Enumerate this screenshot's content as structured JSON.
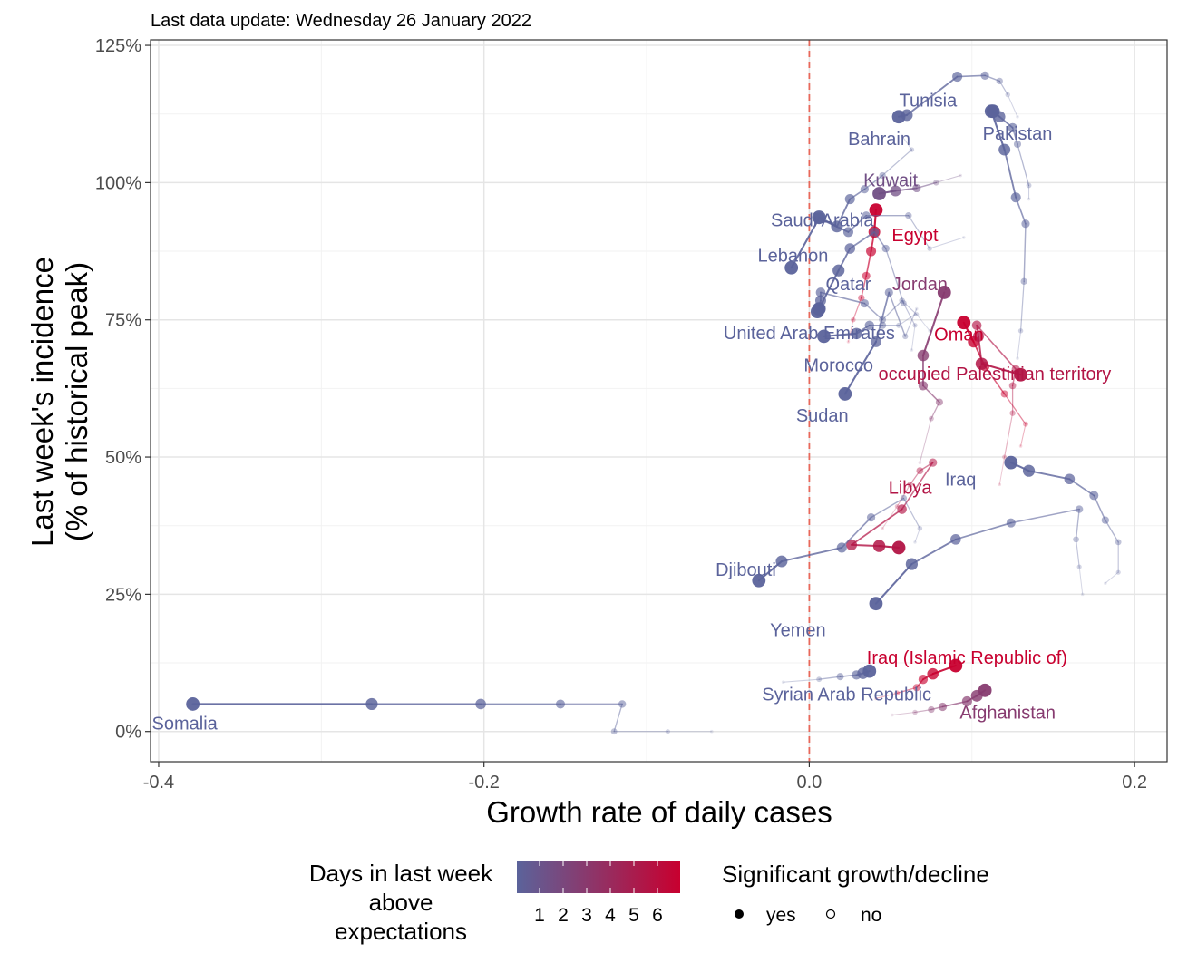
{
  "chart_data": {
    "type": "scatter",
    "subtitle": "Last data update: Wednesday 26 January 2022",
    "xlabel": "Growth rate of daily cases",
    "ylabel_lines": [
      "Last week's incidence",
      "(% of historical peak)"
    ],
    "xlim": [
      -0.405,
      0.22
    ],
    "ylim": [
      -5.5,
      126
    ],
    "x_ticks": [
      {
        "value": -0.4,
        "label": "-0.4"
      },
      {
        "value": -0.2,
        "label": "-0.2"
      },
      {
        "value": 0.0,
        "label": "0.0"
      },
      {
        "value": 0.2,
        "label": "0.2"
      }
    ],
    "y_ticks": [
      {
        "value": 0,
        "label": "0%"
      },
      {
        "value": 25,
        "label": "25%"
      },
      {
        "value": 50,
        "label": "50%"
      },
      {
        "value": 75,
        "label": "75%"
      },
      {
        "value": 100,
        "label": "100%"
      },
      {
        "value": 125,
        "label": "125%"
      }
    ],
    "grid": true,
    "reference_line_x": 0,
    "palette": {
      "low": "#5b639b",
      "high": "#c8002f",
      "reference": "#e8685a"
    },
    "series": [
      {
        "name": "Somalia",
        "days": 1,
        "label_x": -0.384,
        "label_y": 1.5,
        "points": [
          [
            -0.06,
            0
          ],
          [
            -0.087,
            0
          ],
          [
            -0.12,
            0
          ],
          [
            -0.115,
            5
          ],
          [
            -0.153,
            5
          ],
          [
            -0.202,
            5
          ],
          [
            -0.269,
            5
          ],
          [
            -0.379,
            5
          ]
        ]
      },
      {
        "name": "Tunisia",
        "days": 1,
        "label_x": 0.073,
        "label_y": 115,
        "points": [
          [
            0.128,
            112
          ],
          [
            0.122,
            116
          ],
          [
            0.117,
            118.5
          ],
          [
            0.108,
            119.5
          ],
          [
            0.091,
            119.3
          ],
          [
            0.06,
            112.3
          ],
          [
            0.055,
            112
          ]
        ]
      },
      {
        "name": "Pakistan",
        "days": 1,
        "label_x": 0.128,
        "label_y": 109,
        "points": [
          [
            0.135,
            97
          ],
          [
            0.135,
            99.5
          ],
          [
            0.128,
            107
          ],
          [
            0.125,
            110
          ],
          [
            0.117,
            112
          ],
          [
            0.113,
            113
          ]
        ]
      },
      {
        "name": "Bahrain",
        "days": 1,
        "label_x": 0.043,
        "label_y": 108,
        "points": [
          [
            0.128,
            68
          ],
          [
            0.13,
            73
          ],
          [
            0.132,
            82
          ],
          [
            0.133,
            92.5
          ],
          [
            0.127,
            97.3
          ],
          [
            0.12,
            106
          ],
          [
            0.112,
            113
          ]
        ]
      },
      {
        "name": "Kuwait",
        "days": 2,
        "label_x": 0.05,
        "label_y": 100.5,
        "points": [
          [
            0.093,
            101.3
          ],
          [
            0.078,
            100
          ],
          [
            0.066,
            99
          ],
          [
            0.053,
            98.5
          ],
          [
            0.043,
            98
          ]
        ]
      },
      {
        "name": "Saudi Arabia",
        "days": 1,
        "label_x": 0.008,
        "label_y": 93.2,
        "points": [
          [
            0.057,
            108.5
          ],
          [
            0.063,
            106
          ],
          [
            0.045,
            101.3
          ],
          [
            0.034,
            98.8
          ],
          [
            0.025,
            97
          ],
          [
            0.017,
            92
          ],
          [
            0.006,
            93.7
          ]
        ]
      },
      {
        "name": "Egypt",
        "days": 6,
        "label_x": 0.065,
        "label_y": 90.5,
        "points": [
          [
            0.024,
            71
          ],
          [
            0.027,
            75
          ],
          [
            0.032,
            79
          ],
          [
            0.035,
            83
          ],
          [
            0.038,
            87.5
          ],
          [
            0.04,
            91
          ],
          [
            0.041,
            95
          ]
        ]
      },
      {
        "name": "Lebanon",
        "days": 1,
        "label_x": -0.01,
        "label_y": 86.8,
        "points": [
          [
            0.095,
            90
          ],
          [
            0.074,
            88
          ],
          [
            0.061,
            94
          ],
          [
            0.035,
            94
          ],
          [
            0.024,
            91
          ],
          [
            0.006,
            93.5
          ],
          [
            -0.011,
            84.5
          ]
        ]
      },
      {
        "name": "Qatar",
        "days": 1,
        "label_x": 0.024,
        "label_y": 81.6,
        "points": [
          [
            0.063,
            69.5
          ],
          [
            0.065,
            74
          ],
          [
            0.058,
            78
          ],
          [
            0.047,
            88
          ],
          [
            0.04,
            91
          ],
          [
            0.025,
            88
          ],
          [
            0.018,
            84
          ],
          [
            0.006,
            77
          ]
        ]
      },
      {
        "name": "Jordan",
        "days": 3,
        "label_x": 0.068,
        "label_y": 81.6,
        "points": [
          [
            0.068,
            49
          ],
          [
            0.075,
            57
          ],
          [
            0.08,
            60
          ],
          [
            0.07,
            63
          ],
          [
            0.07,
            68.5
          ],
          [
            0.083,
            80
          ]
        ]
      },
      {
        "name": "United Arab Emirates",
        "days": 1,
        "label_x": 0.0,
        "label_y": 72.6,
        "points": [
          [
            0.074,
            73
          ],
          [
            0.066,
            76
          ],
          [
            0.057,
            78.5
          ],
          [
            0.045,
            75
          ],
          [
            0.034,
            78
          ],
          [
            0.007,
            80
          ],
          [
            0.007,
            78.5
          ],
          [
            0.006,
            77
          ],
          [
            0.005,
            76.5
          ]
        ]
      },
      {
        "name": "Oman",
        "days": 6,
        "label_x": 0.092,
        "label_y": 72.4,
        "points": [
          [
            0.13,
            52
          ],
          [
            0.133,
            56
          ],
          [
            0.12,
            61.5
          ],
          [
            0.108,
            66.5
          ],
          [
            0.101,
            71
          ],
          [
            0.095,
            74.5
          ]
        ]
      },
      {
        "name": "Morocco",
        "days": 1,
        "label_x": 0.018,
        "label_y": 66.8,
        "points": [
          [
            0.065,
            76
          ],
          [
            0.055,
            74
          ],
          [
            0.045,
            74
          ],
          [
            0.037,
            74
          ],
          [
            0.029,
            72.5
          ],
          [
            0.009,
            72
          ]
        ]
      },
      {
        "name": "occupied Palestinian territory",
        "days": 5,
        "label_x": 0.114,
        "label_y": 65.2,
        "points": [
          [
            0.117,
            45
          ],
          [
            0.12,
            50
          ],
          [
            0.125,
            58
          ],
          [
            0.125,
            63
          ],
          [
            0.127,
            66
          ],
          [
            0.103,
            74
          ],
          [
            0.104,
            72
          ],
          [
            0.106,
            67
          ],
          [
            0.13,
            65
          ]
        ]
      },
      {
        "name": "Sudan",
        "days": 1,
        "label_x": 0.008,
        "label_y": 57.6,
        "points": [
          [
            0.066,
            77
          ],
          [
            0.059,
            72
          ],
          [
            0.049,
            80
          ],
          [
            0.041,
            71
          ],
          [
            0.022,
            61.5
          ]
        ]
      },
      {
        "name": "Libya",
        "days": 5,
        "label_x": 0.062,
        "label_y": 44.5,
        "points": [
          [
            0.045,
            37
          ],
          [
            0.054,
            41
          ],
          [
            0.062,
            45
          ],
          [
            0.068,
            47.5
          ],
          [
            0.076,
            49
          ],
          [
            0.057,
            40.5
          ],
          [
            0.026,
            34
          ],
          [
            0.043,
            33.8
          ],
          [
            0.055,
            33.5
          ]
        ]
      },
      {
        "name": "Iraq",
        "days": 1,
        "label_x": 0.093,
        "label_y": 46,
        "points": [
          [
            0.182,
            27
          ],
          [
            0.19,
            29
          ],
          [
            0.19,
            34.5
          ],
          [
            0.182,
            38.5
          ],
          [
            0.175,
            43
          ],
          [
            0.16,
            46
          ],
          [
            0.135,
            47.5
          ],
          [
            0.124,
            49
          ]
        ]
      },
      {
        "name": "Djibouti",
        "days": 1,
        "label_x": -0.039,
        "label_y": 29.5,
        "points": [
          [
            0.065,
            34.5
          ],
          [
            0.068,
            37
          ],
          [
            0.058,
            42.5
          ],
          [
            0.038,
            39
          ],
          [
            0.02,
            33.5
          ],
          [
            -0.017,
            31
          ],
          [
            -0.031,
            27.5
          ]
        ]
      },
      {
        "name": "Yemen",
        "days": 1,
        "label_x": -0.007,
        "label_y": 18.5,
        "points": [
          [
            0.168,
            25
          ],
          [
            0.166,
            30
          ],
          [
            0.164,
            35
          ],
          [
            0.166,
            40.5
          ],
          [
            0.124,
            38
          ],
          [
            0.09,
            35
          ],
          [
            0.063,
            30.5
          ],
          [
            0.041,
            23.3
          ]
        ]
      },
      {
        "name": "Iraq (Islamic Republic of)",
        "days": 6,
        "label_x": 0.097,
        "label_y": 13.5,
        "points": [
          [
            0.041,
            6
          ],
          [
            0.054,
            7
          ],
          [
            0.066,
            8
          ],
          [
            0.07,
            9.5
          ],
          [
            0.076,
            10.5
          ],
          [
            0.09,
            12
          ]
        ]
      },
      {
        "name": "Syrian Arab Republic",
        "days": 1,
        "label_x": 0.023,
        "label_y": 6.8,
        "points": [
          [
            -0.016,
            9
          ],
          [
            0.006,
            9.5
          ],
          [
            0.019,
            10
          ],
          [
            0.029,
            10.3
          ],
          [
            0.033,
            10.6
          ],
          [
            0.037,
            11
          ]
        ]
      },
      {
        "name": "Afghanistan",
        "days": 3,
        "label_x": 0.122,
        "label_y": 3.5,
        "points": [
          [
            0.051,
            3
          ],
          [
            0.065,
            3.5
          ],
          [
            0.075,
            4
          ],
          [
            0.082,
            4.5
          ],
          [
            0.097,
            5.5
          ],
          [
            0.103,
            6.5
          ],
          [
            0.108,
            7.5
          ]
        ]
      }
    ],
    "legend": {
      "color_title": [
        "Days in last week",
        "above",
        "expectations"
      ],
      "color_ticks": [
        "1",
        "2",
        "3",
        "4",
        "5",
        "6"
      ],
      "shape_title": "Significant growth/decline",
      "shape_items": [
        {
          "label": "yes",
          "filled": true
        },
        {
          "label": "no",
          "filled": false
        }
      ]
    }
  }
}
